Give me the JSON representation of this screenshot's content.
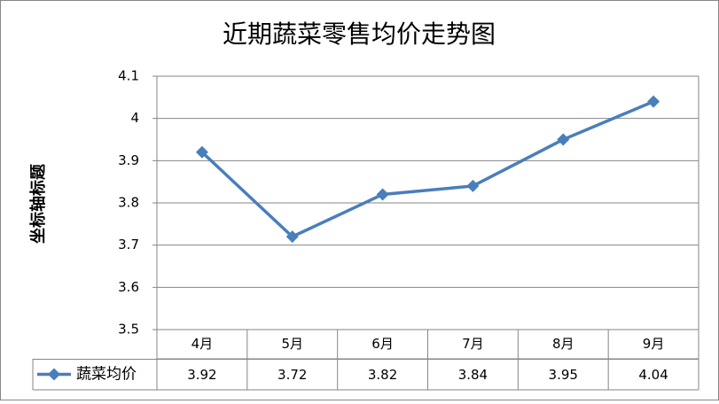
{
  "chart_data": {
    "type": "line",
    "title": "近期蔬菜零售均价走势图",
    "y_axis_label": "坐标轴标题",
    "categories": [
      "4月",
      "5月",
      "6月",
      "7月",
      "8月",
      "9月"
    ],
    "series": [
      {
        "name": "蔬菜均价",
        "color": "#4a7ebb",
        "values": [
          3.92,
          3.72,
          3.82,
          3.84,
          3.95,
          4.04
        ]
      }
    ],
    "ylim": [
      3.5,
      4.1
    ],
    "yticks": [
      3.5,
      3.6,
      3.7,
      3.8,
      3.9,
      4,
      4.1
    ],
    "grid": true
  }
}
